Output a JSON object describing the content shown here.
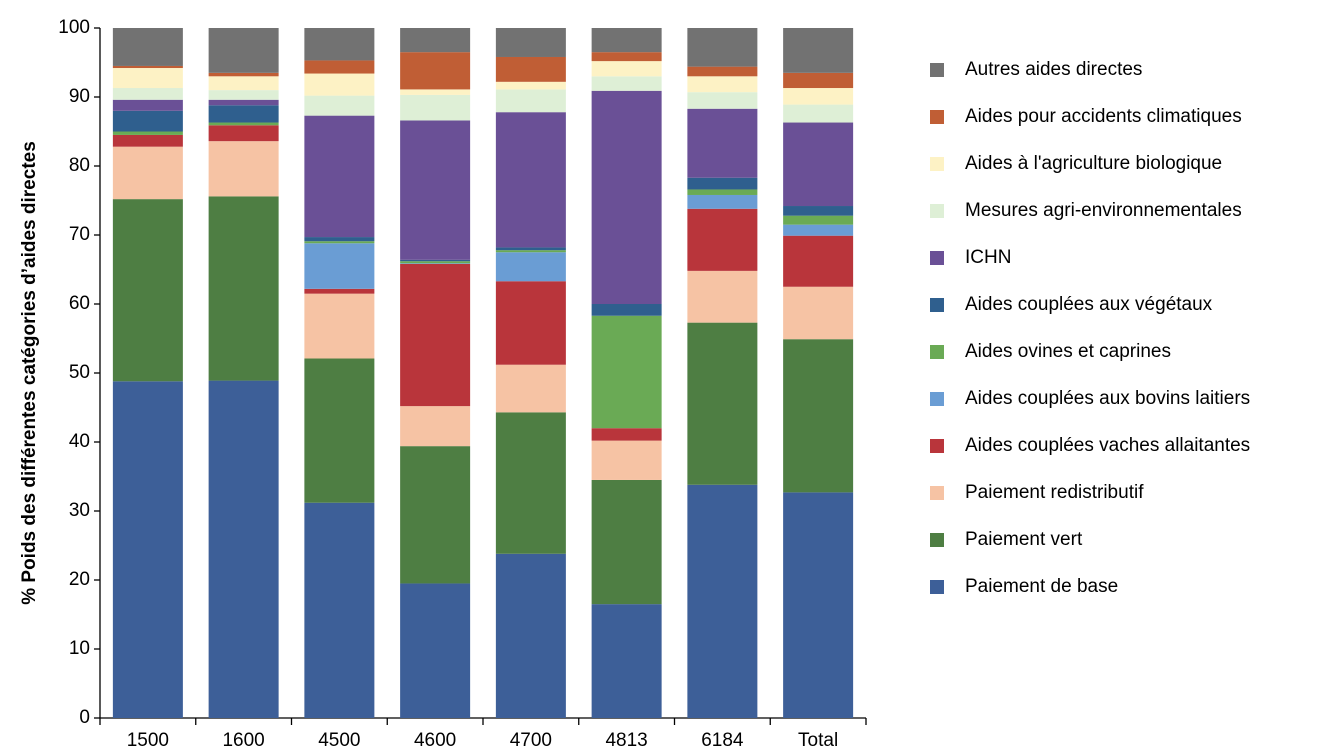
{
  "chart_data": {
    "type": "stacked_bar",
    "y_label": "% Poids des différentes catégories d’aides directes",
    "categories": [
      "1500",
      "1600",
      "4500",
      "4600",
      "4700",
      "4813",
      "6184",
      "Total"
    ],
    "ylim": [
      0,
      100
    ],
    "yticks": [
      0,
      10,
      20,
      30,
      40,
      50,
      60,
      70,
      80,
      90,
      100
    ],
    "series": [
      {
        "name": "Paiement de base",
        "color": "#3d5f98",
        "values": [
          48.8,
          48.9,
          31.2,
          19.5,
          23.8,
          16.5,
          33.8,
          32.7
        ]
      },
      {
        "name": "Paiement vert",
        "color": "#4e7e43",
        "values": [
          26.4,
          26.7,
          20.9,
          19.9,
          20.5,
          18.0,
          23.5,
          22.2
        ]
      },
      {
        "name": "Paiement redistributif",
        "color": "#f6c3a4",
        "values": [
          7.6,
          8.0,
          9.4,
          5.8,
          6.9,
          5.7,
          7.5,
          7.6
        ]
      },
      {
        "name": "Aides couplées vaches allaitantes",
        "color": "#b9353b",
        "values": [
          1.7,
          2.3,
          0.7,
          20.6,
          12.1,
          1.8,
          9.0,
          7.4
        ]
      },
      {
        "name": "Aides couplées aux bovins laitiers",
        "color": "#6a9dd4",
        "values": [
          0,
          0,
          6.6,
          0.1,
          4.2,
          0,
          2.0,
          1.6
        ]
      },
      {
        "name": "Aides ovines et caprines",
        "color": "#6aaa55",
        "values": [
          0.5,
          0.4,
          0.3,
          0.3,
          0.3,
          16.3,
          0.8,
          1.3
        ]
      },
      {
        "name": "Aides couplées aux végétaux",
        "color": "#2f5f8e",
        "values": [
          3.0,
          2.5,
          0.6,
          0.2,
          0.4,
          1.7,
          1.7,
          1.4
        ]
      },
      {
        "name": "ICHN",
        "color": "#6a5096",
        "values": [
          1.6,
          0.8,
          17.6,
          20.2,
          19.6,
          30.9,
          10.0,
          12.1
        ]
      },
      {
        "name": "Mesures agri-environnementales",
        "color": "#deefd6",
        "values": [
          1.7,
          1.4,
          2.9,
          3.7,
          3.3,
          2.1,
          2.4,
          2.6
        ]
      },
      {
        "name": "Aides à l'agriculture biologique",
        "color": "#fdf2c5",
        "values": [
          2.9,
          2.0,
          3.2,
          0.8,
          1.1,
          2.2,
          2.3,
          2.4
        ]
      },
      {
        "name": "Aides pour accidents climatiques",
        "color": "#c05e35",
        "values": [
          0.3,
          0.5,
          1.9,
          5.4,
          3.6,
          1.3,
          1.4,
          2.2
        ]
      },
      {
        "name": "Autres aides directes",
        "color": "#727272",
        "values": [
          5.5,
          6.5,
          4.7,
          3.5,
          4.2,
          3.5,
          5.6,
          6.5
        ]
      }
    ]
  }
}
